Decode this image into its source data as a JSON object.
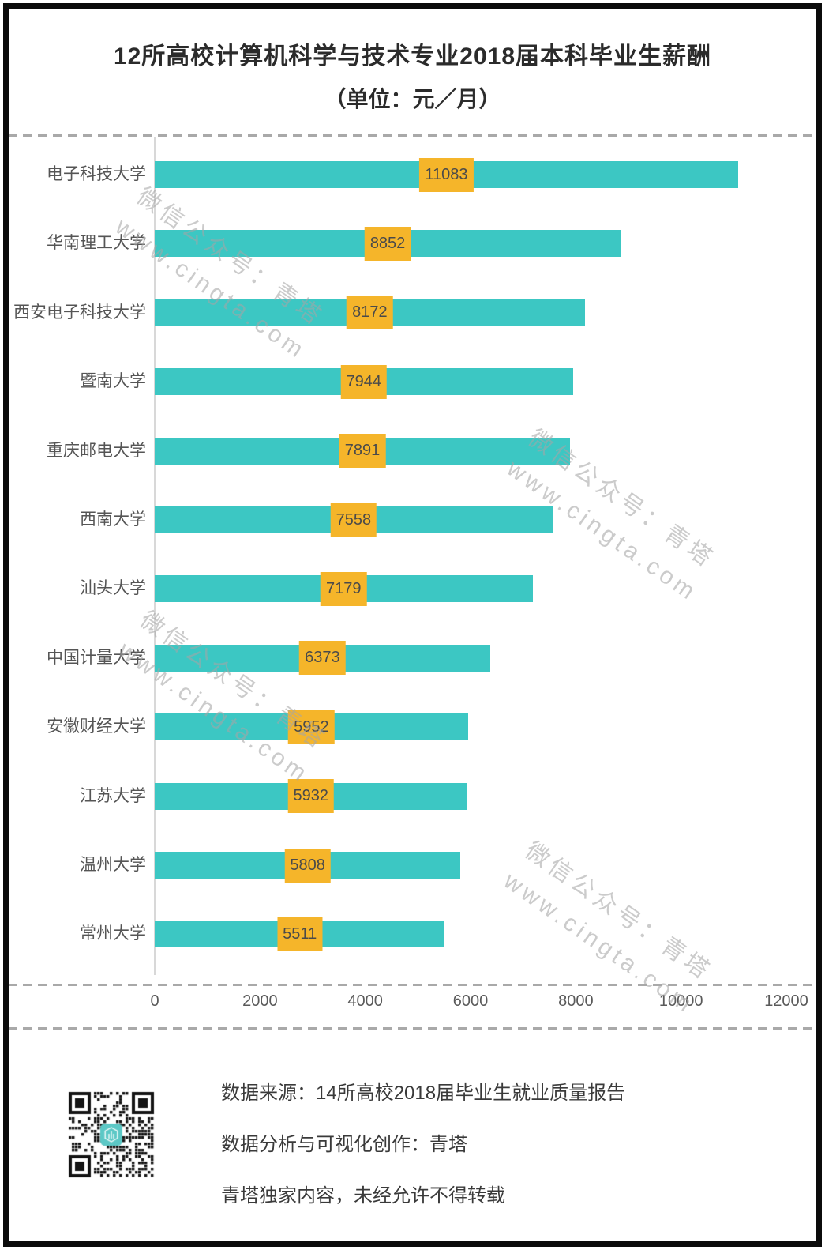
{
  "title": "12所高校计算机科学与技术专业2018届本科毕业生薪酬",
  "subtitle": "（单位：元／月）",
  "chart_data": {
    "type": "bar",
    "orientation": "horizontal",
    "title": "12所高校计算机科学与技术专业2018届本科毕业生薪酬",
    "unit_label": "元/月",
    "categories": [
      "电子科技大学",
      "华南理工大学",
      "西安电子科技大学",
      "暨南大学",
      "重庆邮电大学",
      "西南大学",
      "汕头大学",
      "中国计量大学",
      "安徽财经大学",
      "江苏大学",
      "温州大学",
      "常州大学"
    ],
    "values": [
      11083,
      8852,
      8172,
      7944,
      7891,
      7558,
      7179,
      6373,
      5952,
      5932,
      5808,
      5511
    ],
    "xlim": [
      0,
      12000
    ],
    "x_ticks": [
      0,
      2000,
      4000,
      6000,
      8000,
      10000,
      12000
    ],
    "grid": false,
    "legend": null,
    "bar_color": "#3CC7C3",
    "value_label_bg": "#F5B52A",
    "value_label_color": "#4A4A4A"
  },
  "watermark": {
    "line1": "微信公众号：青塔",
    "line2": "www.cingta.com"
  },
  "footer": {
    "source_line": "数据来源：14所高校2018届毕业生就业质量报告",
    "credit_line": "数据分析与可视化创作：青塔",
    "copyright_line": "青塔独家内容，未经允许不得转载",
    "qr_icon": "qr-code"
  }
}
